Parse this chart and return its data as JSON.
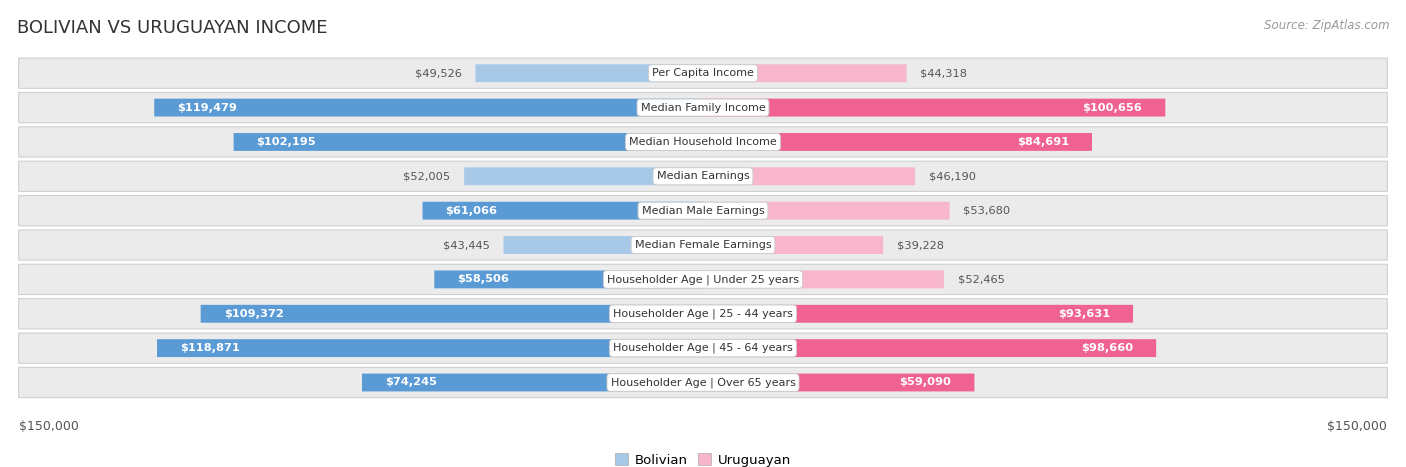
{
  "title": "BOLIVIAN VS URUGUAYAN INCOME",
  "source": "Source: ZipAtlas.com",
  "max_value": 150000,
  "categories": [
    "Per Capita Income",
    "Median Family Income",
    "Median Household Income",
    "Median Earnings",
    "Median Male Earnings",
    "Median Female Earnings",
    "Householder Age | Under 25 years",
    "Householder Age | 25 - 44 years",
    "Householder Age | 45 - 64 years",
    "Householder Age | Over 65 years"
  ],
  "bolivian_values": [
    49526,
    119479,
    102195,
    52005,
    61066,
    43445,
    58506,
    109372,
    118871,
    74245
  ],
  "uruguayan_values": [
    44318,
    100656,
    84691,
    46190,
    53680,
    39228,
    52465,
    93631,
    98660,
    59090
  ],
  "bolivian_color_light": "#a8c8e8",
  "bolivian_color_dark": "#5b9bd5",
  "uruguayan_color_light": "#f7b6cc",
  "uruguayan_color_dark": "#f06292",
  "row_bg_color": "#ebebeb",
  "label_bg_color": "#ffffff",
  "legend_labels": [
    "Bolivian",
    "Uruguayan"
  ],
  "background_color": "#ffffff",
  "threshold_inside": 55000
}
